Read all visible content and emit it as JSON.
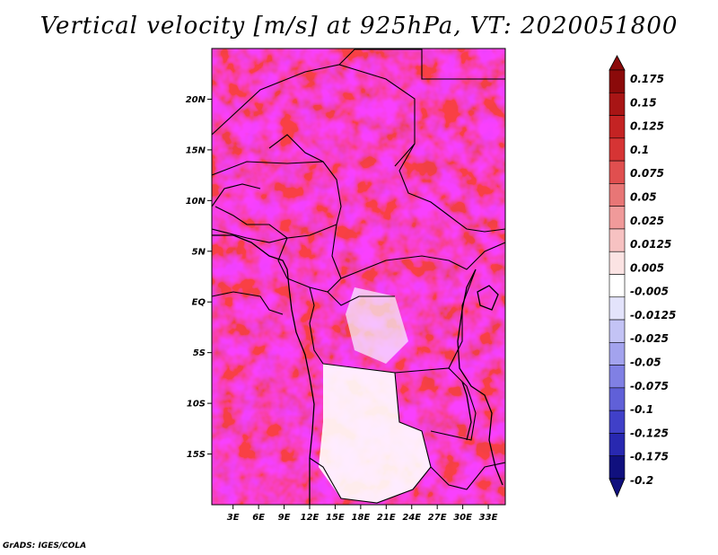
{
  "title": "Vertical velocity [m/s] at 925hPa, VT: 2020051800",
  "credit": "GrADS: IGES/COLA",
  "map": {
    "lat_labels": [
      "20N",
      "15N",
      "10N",
      "5N",
      "EQ",
      "5S",
      "10S",
      "15S"
    ],
    "lat_values": [
      20,
      15,
      10,
      5,
      0,
      -5,
      -10,
      -15
    ],
    "lon_labels": [
      "3E",
      "6E",
      "9E",
      "12E",
      "15E",
      "18E",
      "21E",
      "24E",
      "27E",
      "30E",
      "33E"
    ],
    "lon_values": [
      3,
      6,
      9,
      12,
      15,
      18,
      21,
      24,
      27,
      30,
      33
    ],
    "lat_range": [
      -20,
      25
    ],
    "lon_range": [
      0.5,
      35
    ]
  },
  "colorbar": {
    "labels": [
      "0.175",
      "0.15",
      "0.125",
      "0.1",
      "0.075",
      "0.05",
      "0.025",
      "0.0125",
      "0.005",
      "-0.005",
      "-0.0125",
      "-0.025",
      "-0.05",
      "-0.075",
      "-0.1",
      "-0.125",
      "-0.175",
      "-0.2"
    ],
    "colors": [
      "#8b0a0a",
      "#a81515",
      "#c42323",
      "#d63434",
      "#e04f4f",
      "#e87676",
      "#f09a9a",
      "#f7c2c2",
      "#fbe3e3",
      "#ffffff",
      "#e3e3fb",
      "#c3c3f5",
      "#a3a3ee",
      "#8080e4",
      "#6060d8",
      "#4040c8",
      "#2828b0",
      "#10107e"
    ]
  }
}
